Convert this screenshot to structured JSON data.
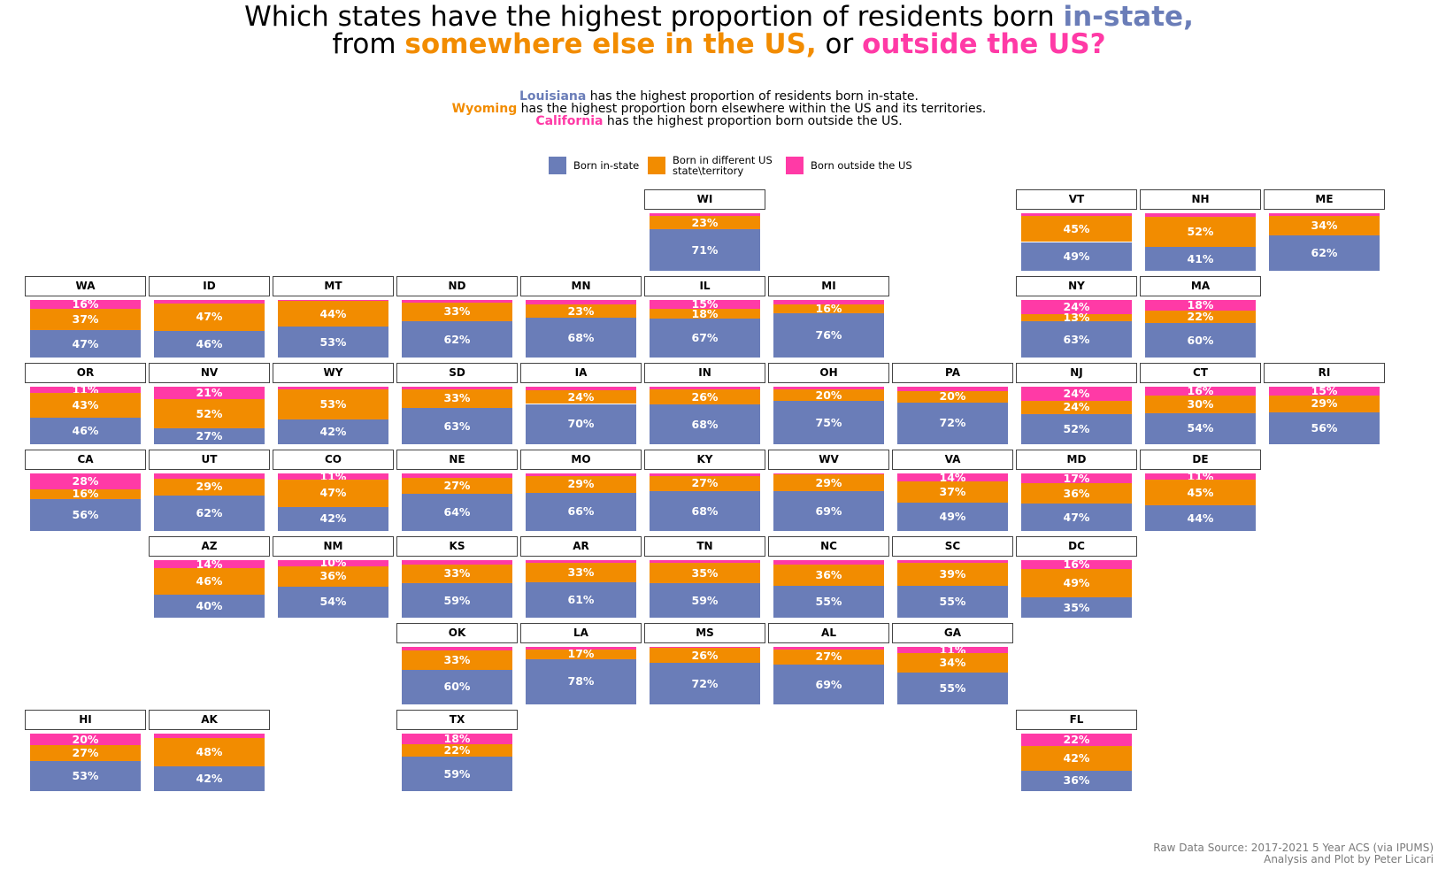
{
  "title": {
    "line1_prefix": "Which states have the highest proportion of residents born ",
    "line1_hl": "in-state,",
    "line2_prefix": "from ",
    "line2_hl1": "somewhere else in the US,",
    "line2_mid": " or ",
    "line2_hl2": "outside the US?"
  },
  "subtitle": {
    "row1_hl": "Louisiana",
    "row1_text": " has the highest proportion of residents born in-state.",
    "row2_hl": "Wyoming",
    "row2_text": " has the highest proportion born elsewhere within the US and its territories.",
    "row3_hl": "California",
    "row3_text": " has the highest proportion born outside the US."
  },
  "legend": {
    "in_state": "Born in-state",
    "other_us": "Born in different US state\\territory",
    "outside": "Born outside the US"
  },
  "colors": {
    "in_state": "#6a7db8",
    "other_us": "#f28c00",
    "outside": "#ff3aa6"
  },
  "source": {
    "line1": "Raw Data Source: 2017-2021 5 Year ACS (via IPUMS)",
    "line2": "Analysis and Plot by Peter Licari"
  },
  "chart_data": {
    "type": "bar",
    "layout": "tile-grid map of US states, each tile a 100% stacked bar",
    "series_order": [
      "in_state",
      "other_us",
      "outside"
    ],
    "states": [
      {
        "abbr": "WI",
        "row": 0,
        "col": 5,
        "in_state": 71,
        "other_us": 23,
        "outside": 5
      },
      {
        "abbr": "VT",
        "row": 0,
        "col": 8,
        "in_state": 49,
        "other_us": 45,
        "outside": 4
      },
      {
        "abbr": "NH",
        "row": 0,
        "col": 9,
        "in_state": 41,
        "other_us": 52,
        "outside": 6
      },
      {
        "abbr": "ME",
        "row": 0,
        "col": 10,
        "in_state": 62,
        "other_us": 34,
        "outside": 4
      },
      {
        "abbr": "WA",
        "row": 1,
        "col": 0,
        "in_state": 47,
        "other_us": 37,
        "outside": 16
      },
      {
        "abbr": "ID",
        "row": 1,
        "col": 1,
        "in_state": 46,
        "other_us": 47,
        "outside": 6
      },
      {
        "abbr": "MT",
        "row": 1,
        "col": 2,
        "in_state": 53,
        "other_us": 44,
        "outside": 2
      },
      {
        "abbr": "ND",
        "row": 1,
        "col": 3,
        "in_state": 62,
        "other_us": 33,
        "outside": 4
      },
      {
        "abbr": "MN",
        "row": 1,
        "col": 4,
        "in_state": 68,
        "other_us": 23,
        "outside": 8
      },
      {
        "abbr": "IL",
        "row": 1,
        "col": 5,
        "in_state": 67,
        "other_us": 18,
        "outside": 15
      },
      {
        "abbr": "MI",
        "row": 1,
        "col": 6,
        "in_state": 76,
        "other_us": 16,
        "outside": 7
      },
      {
        "abbr": "NY",
        "row": 1,
        "col": 8,
        "in_state": 63,
        "other_us": 13,
        "outside": 24
      },
      {
        "abbr": "MA",
        "row": 1,
        "col": 9,
        "in_state": 60,
        "other_us": 22,
        "outside": 18
      },
      {
        "abbr": "OR",
        "row": 2,
        "col": 0,
        "in_state": 46,
        "other_us": 43,
        "outside": 11
      },
      {
        "abbr": "NV",
        "row": 2,
        "col": 1,
        "in_state": 27,
        "other_us": 52,
        "outside": 21
      },
      {
        "abbr": "WY",
        "row": 2,
        "col": 2,
        "in_state": 42,
        "other_us": 53,
        "outside": 4
      },
      {
        "abbr": "SD",
        "row": 2,
        "col": 3,
        "in_state": 63,
        "other_us": 33,
        "outside": 4
      },
      {
        "abbr": "IA",
        "row": 2,
        "col": 4,
        "in_state": 70,
        "other_us": 24,
        "outside": 6
      },
      {
        "abbr": "IN",
        "row": 2,
        "col": 5,
        "in_state": 68,
        "other_us": 26,
        "outside": 5
      },
      {
        "abbr": "OH",
        "row": 2,
        "col": 6,
        "in_state": 75,
        "other_us": 20,
        "outside": 5
      },
      {
        "abbr": "PA",
        "row": 2,
        "col": 7,
        "in_state": 72,
        "other_us": 20,
        "outside": 7
      },
      {
        "abbr": "NJ",
        "row": 2,
        "col": 8,
        "in_state": 52,
        "other_us": 24,
        "outside": 24
      },
      {
        "abbr": "CT",
        "row": 2,
        "col": 9,
        "in_state": 54,
        "other_us": 30,
        "outside": 16
      },
      {
        "abbr": "RI",
        "row": 2,
        "col": 10,
        "in_state": 56,
        "other_us": 29,
        "outside": 15
      },
      {
        "abbr": "CA",
        "row": 3,
        "col": 0,
        "in_state": 56,
        "other_us": 16,
        "outside": 28
      },
      {
        "abbr": "UT",
        "row": 3,
        "col": 1,
        "in_state": 62,
        "other_us": 29,
        "outside": 9
      },
      {
        "abbr": "CO",
        "row": 3,
        "col": 2,
        "in_state": 42,
        "other_us": 47,
        "outside": 11
      },
      {
        "abbr": "NE",
        "row": 3,
        "col": 3,
        "in_state": 64,
        "other_us": 27,
        "outside": 8
      },
      {
        "abbr": "MO",
        "row": 3,
        "col": 4,
        "in_state": 66,
        "other_us": 29,
        "outside": 4
      },
      {
        "abbr": "KY",
        "row": 3,
        "col": 5,
        "in_state": 68,
        "other_us": 27,
        "outside": 4
      },
      {
        "abbr": "WV",
        "row": 3,
        "col": 6,
        "in_state": 69,
        "other_us": 29,
        "outside": 2
      },
      {
        "abbr": "VA",
        "row": 3,
        "col": 7,
        "in_state": 49,
        "other_us": 37,
        "outside": 14
      },
      {
        "abbr": "MD",
        "row": 3,
        "col": 8,
        "in_state": 47,
        "other_us": 36,
        "outside": 17
      },
      {
        "abbr": "DE",
        "row": 3,
        "col": 9,
        "in_state": 44,
        "other_us": 45,
        "outside": 11
      },
      {
        "abbr": "AZ",
        "row": 4,
        "col": 1,
        "in_state": 40,
        "other_us": 46,
        "outside": 14
      },
      {
        "abbr": "NM",
        "row": 4,
        "col": 2,
        "in_state": 54,
        "other_us": 36,
        "outside": 10
      },
      {
        "abbr": "KS",
        "row": 4,
        "col": 3,
        "in_state": 59,
        "other_us": 33,
        "outside": 7
      },
      {
        "abbr": "AR",
        "row": 4,
        "col": 4,
        "in_state": 61,
        "other_us": 33,
        "outside": 5
      },
      {
        "abbr": "TN",
        "row": 4,
        "col": 5,
        "in_state": 59,
        "other_us": 35,
        "outside": 5
      },
      {
        "abbr": "NC",
        "row": 4,
        "col": 6,
        "in_state": 55,
        "other_us": 36,
        "outside": 8
      },
      {
        "abbr": "SC",
        "row": 4,
        "col": 7,
        "in_state": 55,
        "other_us": 39,
        "outside": 5
      },
      {
        "abbr": "DC",
        "row": 4,
        "col": 8,
        "in_state": 35,
        "other_us": 49,
        "outside": 16
      },
      {
        "abbr": "OK",
        "row": 5,
        "col": 3,
        "in_state": 60,
        "other_us": 33,
        "outside": 6
      },
      {
        "abbr": "LA",
        "row": 5,
        "col": 4,
        "in_state": 78,
        "other_us": 17,
        "outside": 4
      },
      {
        "abbr": "MS",
        "row": 5,
        "col": 5,
        "in_state": 72,
        "other_us": 26,
        "outside": 2
      },
      {
        "abbr": "AL",
        "row": 5,
        "col": 6,
        "in_state": 69,
        "other_us": 27,
        "outside": 4
      },
      {
        "abbr": "GA",
        "row": 5,
        "col": 7,
        "in_state": 55,
        "other_us": 34,
        "outside": 11
      },
      {
        "abbr": "HI",
        "row": 6,
        "col": 0,
        "in_state": 53,
        "other_us": 27,
        "outside": 20
      },
      {
        "abbr": "AK",
        "row": 6,
        "col": 1,
        "in_state": 42,
        "other_us": 48,
        "outside": 8
      },
      {
        "abbr": "TX",
        "row": 6,
        "col": 3,
        "in_state": 59,
        "other_us": 22,
        "outside": 18
      },
      {
        "abbr": "FL",
        "row": 6,
        "col": 8,
        "in_state": 36,
        "other_us": 42,
        "outside": 22
      }
    ]
  }
}
